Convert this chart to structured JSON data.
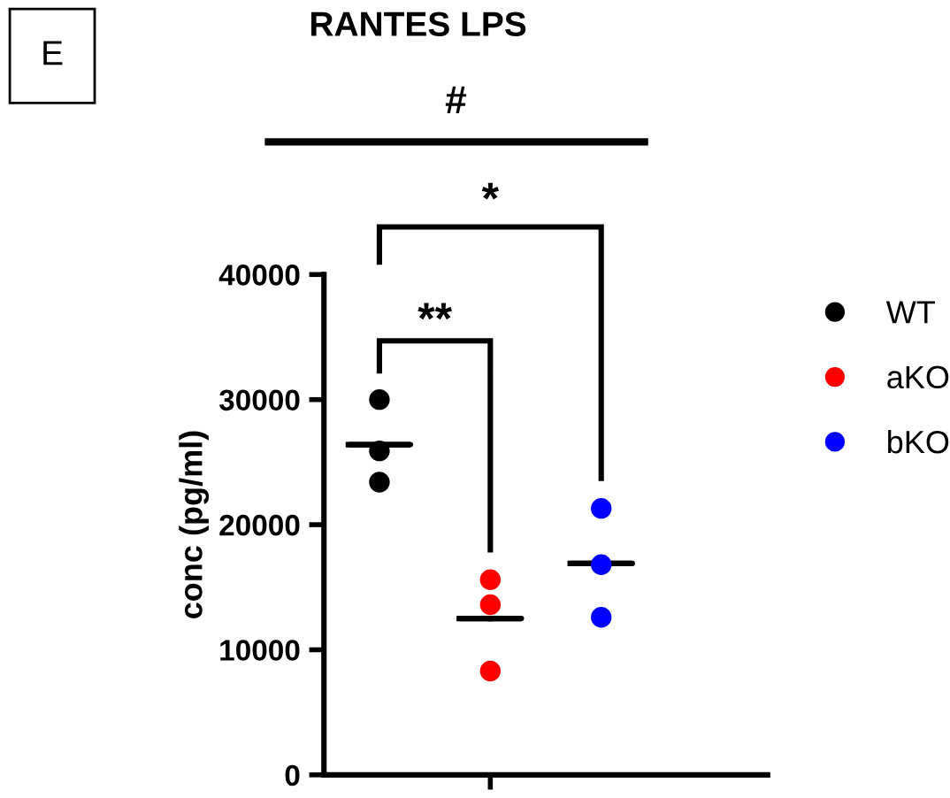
{
  "chart_data": {
    "type": "scatter",
    "title": "RANTES LPS",
    "ylabel": "conc (pg/ml)",
    "categories": [
      null,
      null,
      null,
      null
    ],
    "series": [
      {
        "name": "WT",
        "color": "#000000",
        "values": [
          30000,
          null,
          null,
          null
        ]
      },
      {
        "color": "#000000",
        "values": [
          25900,
          null,
          null,
          null
        ]
      },
      {
        "color": "#000000",
        "values": [
          23400,
          null,
          null,
          null
        ]
      },
      {
        "name": "aKO",
        "color": "#ff0000",
        "values": [
          null,
          15600,
          null,
          null
        ]
      },
      {
        "color": "#ff0000",
        "values": [
          null,
          13600,
          null,
          null
        ]
      },
      {
        "color": "#ff0000",
        "values": [
          null,
          8300,
          null,
          null
        ]
      },
      {
        "name": "bKO",
        "color": "#0000ff",
        "values": [
          null,
          null,
          21300,
          null
        ]
      },
      {
        "color": "#0000ff",
        "values": [
          null,
          null,
          16800,
          null
        ]
      },
      {
        "color": "#0000ff",
        "values": [
          null,
          null,
          12600,
          null
        ]
      },
      {
        "type": "box",
        "color": "#000000",
        "boxes": [
          {
            "low": 26400,
            "q1": 26400,
            "median": 26400,
            "q3": 26400,
            "high": 26400
          },
          {
            "low": 12500,
            "q1": 12500,
            "median": 12500,
            "q3": 12500,
            "high": 12500
          },
          {
            "low": 16900,
            "q1": 16900,
            "median": 16900,
            "q3": 16900,
            "high": 16900
          },
          null
        ]
      }
    ],
    "ylim": [
      0,
      40000
    ],
    "yticks": [
      0,
      10000,
      20000,
      30000,
      40000
    ],
    "grid": false,
    "legend": "right",
    "marker": "circle",
    "annotations": [
      "E",
      "#",
      "*",
      "**"
    ]
  }
}
